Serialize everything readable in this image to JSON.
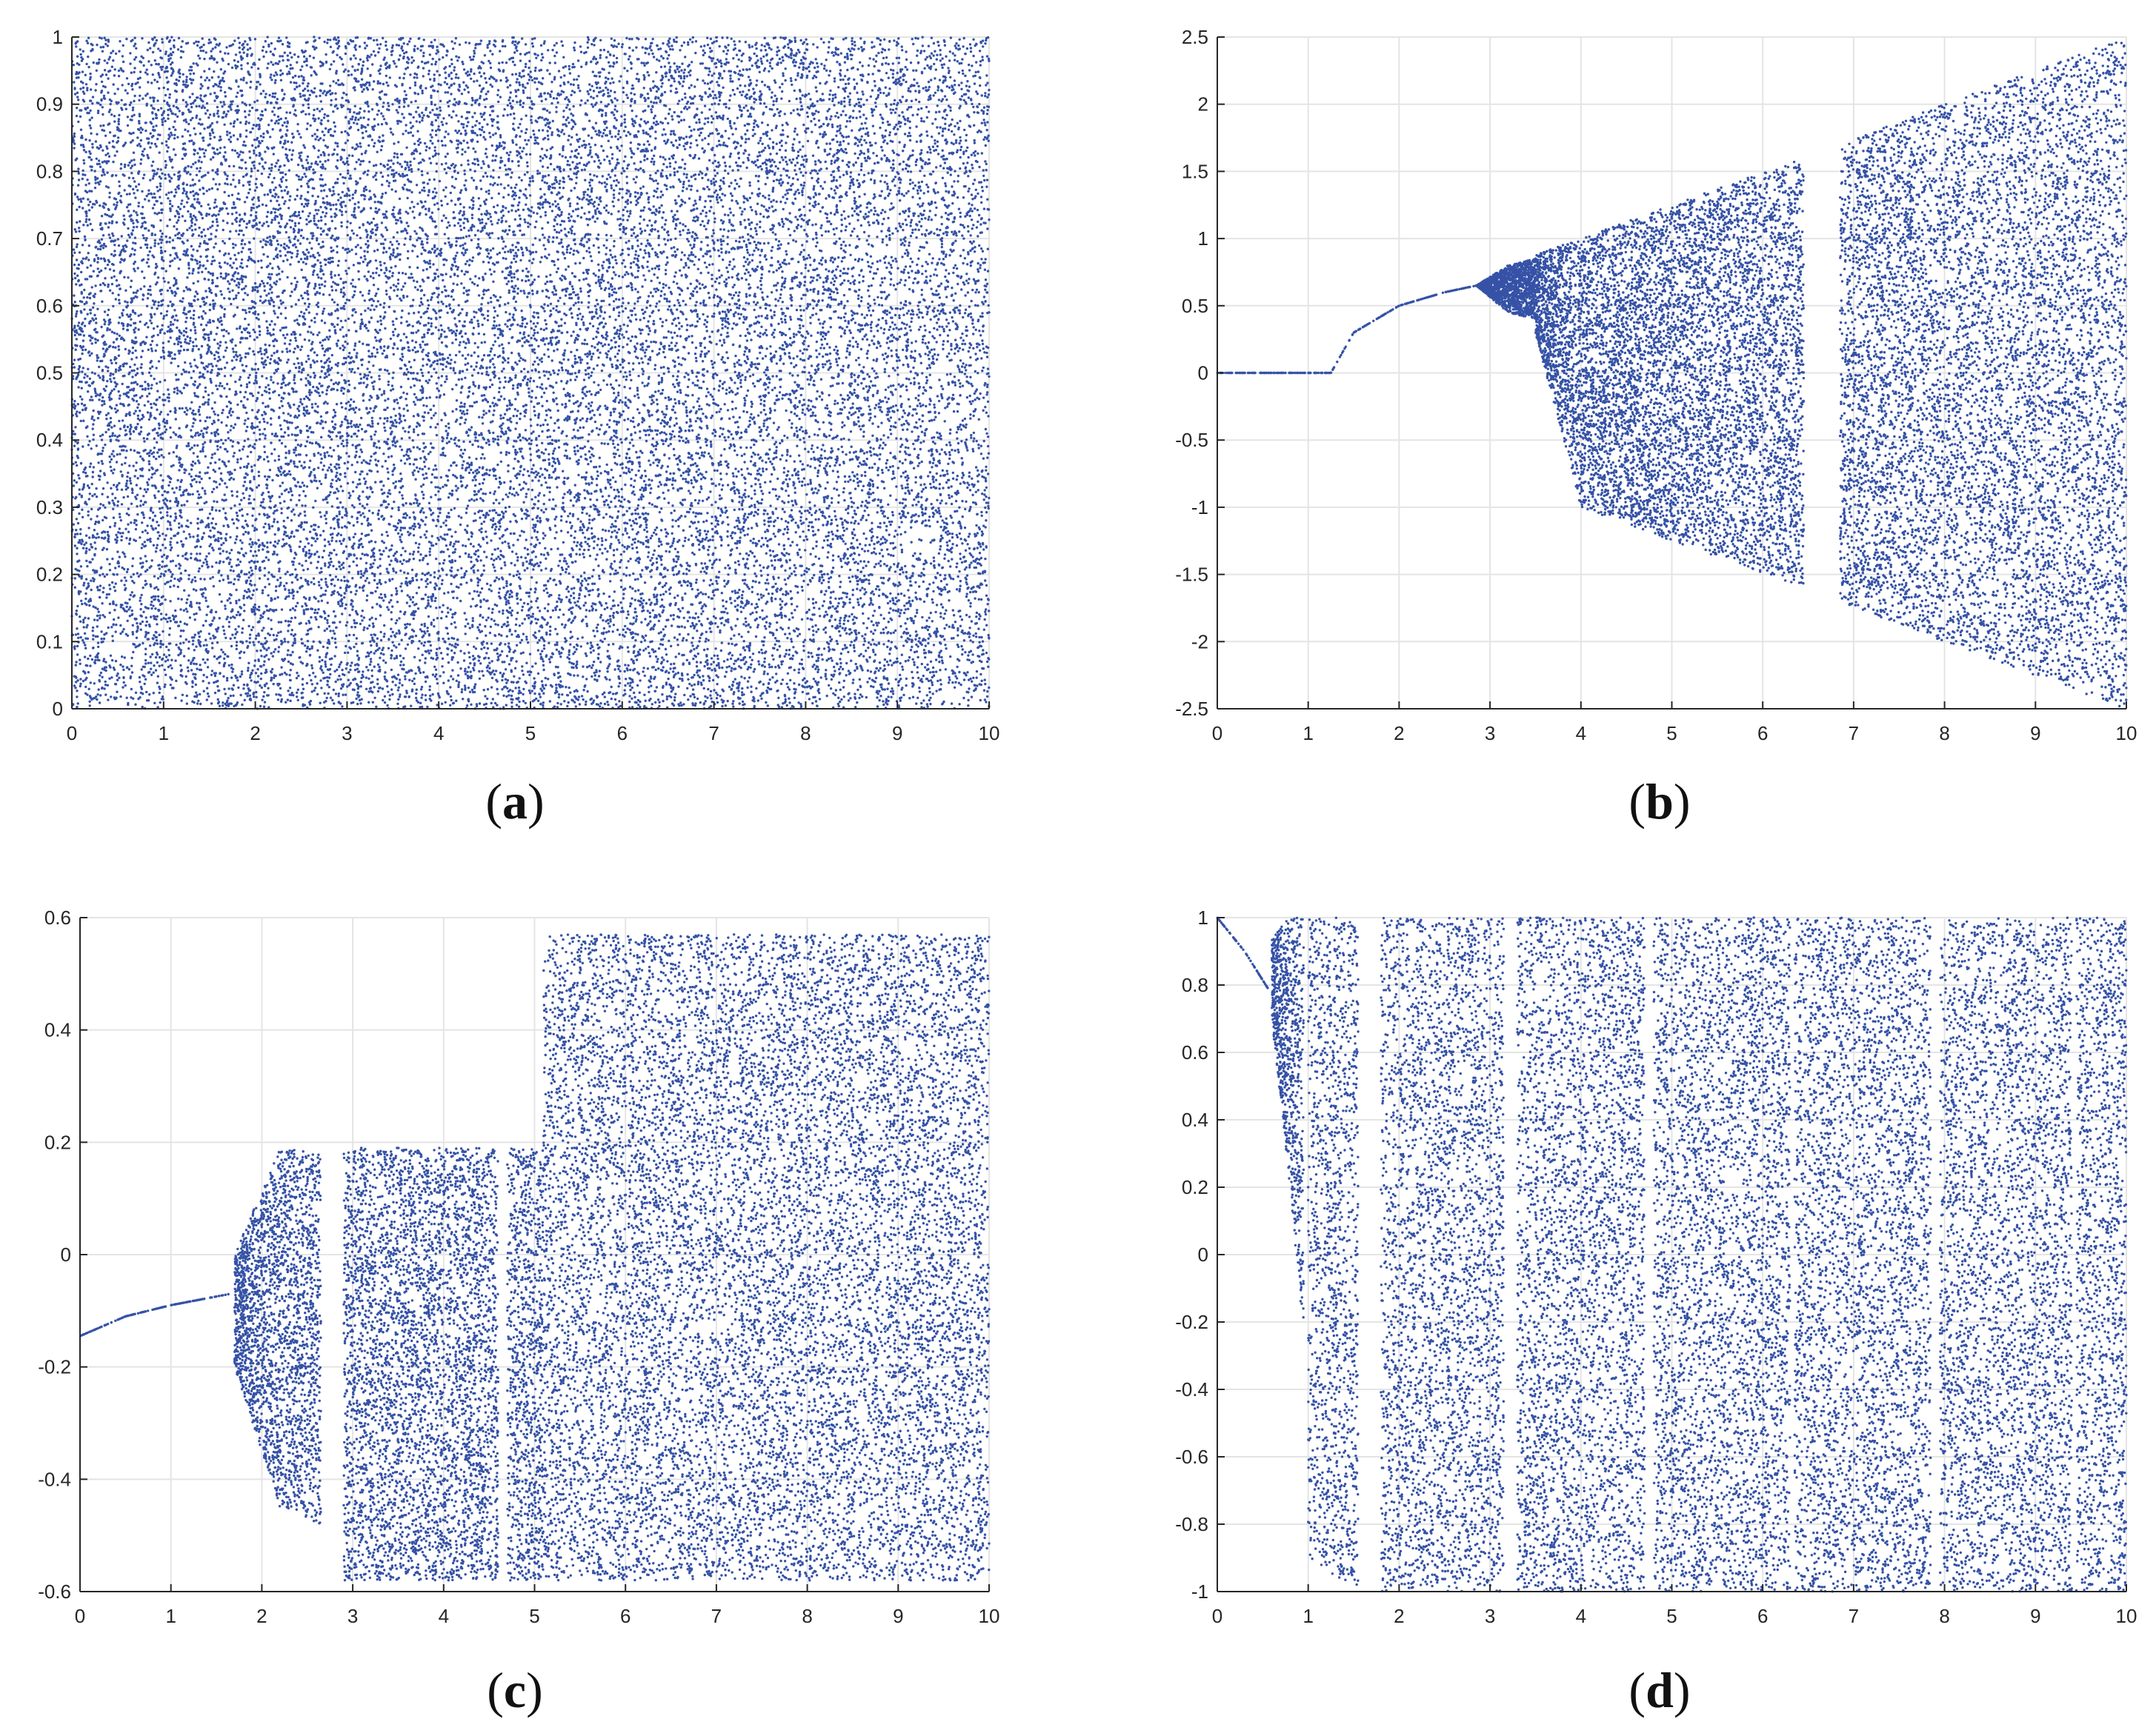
{
  "colors": {
    "points": "#3552a6",
    "grid": "#e4e4e4",
    "axis": "#262626",
    "background": "#ffffff"
  },
  "chart_data": [
    {
      "id": "a",
      "type": "scatter",
      "title": "",
      "xlabel": "",
      "ylabel": "",
      "panel_label": {
        "open": "(",
        "letter": "a",
        "close": ")"
      },
      "xlim": [
        0,
        10
      ],
      "ylim": [
        0,
        1
      ],
      "xticks": [
        0,
        1,
        2,
        3,
        4,
        5,
        6,
        7,
        8,
        9,
        10
      ],
      "xtick_labels": [
        "0",
        "1",
        "2",
        "3",
        "4",
        "5",
        "6",
        "7",
        "8",
        "9",
        "10"
      ],
      "yticks": [
        0,
        0.1,
        0.2,
        0.3,
        0.4,
        0.5,
        0.6,
        0.7,
        0.8,
        0.9,
        1
      ],
      "ytick_labels": [
        "0",
        "0.1",
        "0.2",
        "0.3",
        "0.4",
        "0.5",
        "0.6",
        "0.7",
        "0.8",
        "0.9",
        "1"
      ],
      "grid": true,
      "description_of_data": "uniform chaotic scatter filling [0,1] for all parameter values 0-10",
      "series": [
        {
          "segments": [
            {
              "x": [
                0,
                10
              ],
              "lower": [
                0,
                0
              ],
              "upper": [
                1,
                1
              ]
            }
          ]
        }
      ]
    },
    {
      "id": "b",
      "type": "scatter",
      "title": "",
      "xlabel": "",
      "ylabel": "",
      "panel_label": {
        "open": "(",
        "letter": "b",
        "close": ")"
      },
      "xlim": [
        0,
        10
      ],
      "ylim": [
        -2.5,
        2.5
      ],
      "xticks": [
        0,
        1,
        2,
        3,
        4,
        5,
        6,
        7,
        8,
        9,
        10
      ],
      "xtick_labels": [
        "0",
        "1",
        "2",
        "3",
        "4",
        "5",
        "6",
        "7",
        "8",
        "9",
        "10"
      ],
      "yticks": [
        -2.5,
        -2,
        -1.5,
        -1,
        -0.5,
        0,
        0.5,
        1,
        1.5,
        2,
        2.5
      ],
      "ytick_labels": [
        "-2.5",
        "-2",
        "-1.5",
        "-1",
        "-0.5",
        "0",
        "0.5",
        "1",
        "1.5",
        "2",
        "2.5"
      ],
      "grid": true,
      "description_of_data": "fixed point 0 until 1.25, branch rising to ~0.65 at 2.85, period-2 window to ~3.5, chaotic band between -x/4 and x/4 from 4 to 10 with a periodic window near 6-6.8",
      "series": [
        {
          "segments": [
            {
              "x": [
                0,
                1.25
              ],
              "lower": [
                0,
                0
              ],
              "upper": [
                0,
                0
              ]
            },
            {
              "x": [
                1.25,
                1.5,
                2.0,
                2.5,
                2.85
              ],
              "lower": [
                0,
                0.3,
                0.5,
                0.6,
                0.65
              ],
              "upper": [
                0,
                0.3,
                0.5,
                0.6,
                0.65
              ]
            },
            {
              "x": [
                2.85,
                3.2,
                3.5
              ],
              "lower": [
                0.65,
                0.45,
                0.4
              ],
              "upper": [
                0.65,
                0.8,
                0.85
              ]
            },
            {
              "x": [
                3.5,
                4.0,
                5.0,
                5.85
              ],
              "lower": [
                0.3,
                -1.0,
                -1.25,
                -1.45
              ],
              "upper": [
                0.88,
                1.0,
                1.25,
                1.46
              ]
            },
            {
              "x": [
                5.85,
                6.45
              ],
              "lower": [
                -1.45,
                -1.6
              ],
              "upper": [
                1.45,
                1.6
              ]
            },
            {
              "x": [
                6.85,
                8.0,
                9.0,
                10.0
              ],
              "lower": [
                -1.7,
                -2.0,
                -2.25,
                -2.5
              ],
              "upper": [
                1.7,
                2.0,
                2.25,
                2.5
              ]
            }
          ]
        }
      ]
    },
    {
      "id": "c",
      "type": "scatter",
      "title": "",
      "xlabel": "",
      "ylabel": "",
      "panel_label": {
        "open": "(",
        "letter": "c",
        "close": ")"
      },
      "xlim": [
        0,
        10
      ],
      "ylim": [
        -0.6,
        0.6
      ],
      "xticks": [
        0,
        1,
        2,
        3,
        4,
        5,
        6,
        7,
        8,
        9,
        10
      ],
      "xtick_labels": [
        "0",
        "1",
        "2",
        "3",
        "4",
        "5",
        "6",
        "7",
        "8",
        "9",
        "10"
      ],
      "yticks": [
        -0.6,
        -0.4,
        -0.2,
        0,
        0.2,
        0.4,
        0.6
      ],
      "ytick_labels": [
        "-0.6",
        "-0.4",
        "-0.2",
        "0",
        "0.2",
        "0.4",
        "0.6"
      ],
      "grid": true,
      "description_of_data": "branch rising from -0.15 to -0.07 at 1.65, period-2 bubble reaching 0.19 and -0.48, chaos in [-0.58,0.19] from 2.9, extended to 0.57 after 5.1",
      "series": [
        {
          "segments": [
            {
              "x": [
                0,
                0.5,
                1.0,
                1.65
              ],
              "lower": [
                -0.145,
                -0.11,
                -0.09,
                -0.07
              ],
              "upper": [
                -0.145,
                -0.11,
                -0.09,
                -0.07
              ]
            },
            {
              "x": [
                1.7,
                2.2,
                2.65
              ],
              "lower": [
                -0.2,
                -0.45,
                -0.48
              ],
              "upper": [
                0.0,
                0.19,
                0.18
              ]
            },
            {
              "x": [
                2.9,
                4.6
              ],
              "lower": [
                -0.58,
                -0.58
              ],
              "upper": [
                0.19,
                0.19
              ]
            },
            {
              "x": [
                4.7,
                5.1
              ],
              "lower": [
                -0.58,
                -0.58
              ],
              "upper": [
                0.19,
                0.19
              ]
            },
            {
              "x": [
                5.1,
                7.0,
                10.0
              ],
              "lower": [
                -0.58,
                -0.58,
                -0.58
              ],
              "upper": [
                0.57,
                0.57,
                0.57
              ]
            }
          ]
        }
      ]
    },
    {
      "id": "d",
      "type": "scatter",
      "title": "",
      "xlabel": "",
      "ylabel": "",
      "panel_label": {
        "open": "(",
        "letter": "d",
        "close": ")"
      },
      "xlim": [
        0,
        10
      ],
      "ylim": [
        -1,
        1
      ],
      "xticks": [
        0,
        1,
        2,
        3,
        4,
        5,
        6,
        7,
        8,
        9,
        10
      ],
      "xtick_labels": [
        "0",
        "1",
        "2",
        "3",
        "4",
        "5",
        "6",
        "7",
        "8",
        "9",
        "10"
      ],
      "yticks": [
        -1,
        -0.8,
        -0.6,
        -0.4,
        -0.2,
        0,
        0.2,
        0.4,
        0.6,
        0.8,
        1
      ],
      "ytick_labels": [
        "-1",
        "-0.8",
        "-0.6",
        "-0.4",
        "-0.2",
        "0",
        "0.2",
        "0.4",
        "0.6",
        "0.8",
        "1"
      ],
      "grid": true,
      "description_of_data": "branch falling from 1 to 0.8 near 0.6, then chaotic band filling [-1,1] from ~1 to 10 with narrow periodic windows near 1.7, 3.2, 4.7, 6.3, 7.9, 9.4",
      "series": [
        {
          "segments": [
            {
              "x": [
                0,
                0.3,
                0.58
              ],
              "lower": [
                1.0,
                0.9,
                0.78
              ],
              "upper": [
                1.0,
                0.9,
                0.78
              ]
            },
            {
              "x": [
                0.6,
                0.8,
                0.95
              ],
              "lower": [
                0.7,
                0.2,
                -0.25
              ],
              "upper": [
                0.95,
                1.0,
                1.0
              ]
            },
            {
              "x": [
                1.0,
                1.55
              ],
              "lower": [
                -0.9,
                -1.0
              ],
              "upper": [
                1.0,
                1.0
              ]
            },
            {
              "x": [
                1.8,
                3.15
              ],
              "lower": [
                -1.0,
                -1.0
              ],
              "upper": [
                1.0,
                1.0
              ]
            },
            {
              "x": [
                3.3,
                4.7
              ],
              "lower": [
                -1.0,
                -1.0
              ],
              "upper": [
                1.0,
                1.0
              ]
            },
            {
              "x": [
                4.8,
                6.3
              ],
              "lower": [
                -1.0,
                -1.0
              ],
              "upper": [
                1.0,
                1.0
              ]
            },
            {
              "x": [
                6.35,
                7.85
              ],
              "lower": [
                -1.0,
                -1.0
              ],
              "upper": [
                1.0,
                1.0
              ]
            },
            {
              "x": [
                7.95,
                9.4
              ],
              "lower": [
                -1.0,
                -1.0
              ],
              "upper": [
                1.0,
                1.0
              ]
            },
            {
              "x": [
                9.45,
                10.0
              ],
              "lower": [
                -1.0,
                -1.0
              ],
              "upper": [
                1.0,
                1.0
              ]
            }
          ]
        }
      ]
    }
  ]
}
